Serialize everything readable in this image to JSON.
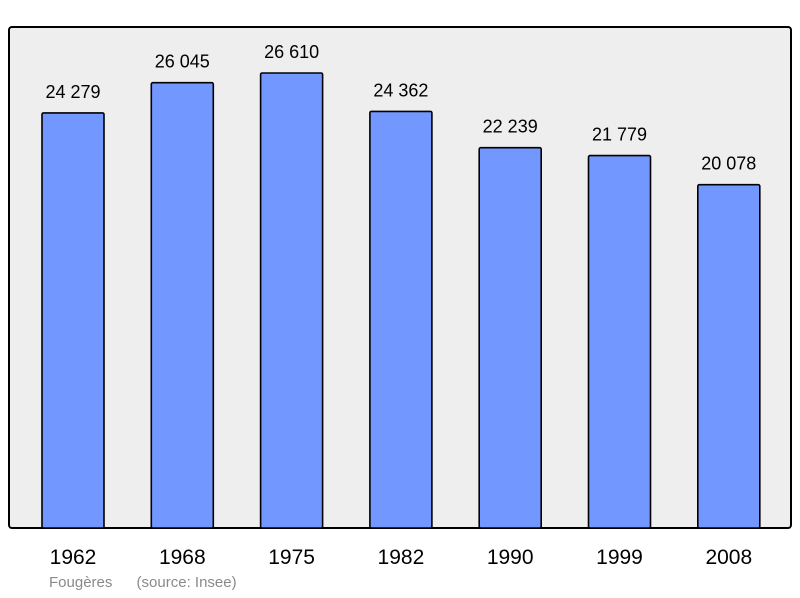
{
  "chart_data": {
    "type": "bar",
    "categories": [
      "1962",
      "1968",
      "1975",
      "1982",
      "1990",
      "1999",
      "2008"
    ],
    "values": [
      24279,
      26045,
      26610,
      24362,
      22239,
      21779,
      20078
    ],
    "value_labels": [
      "24 279",
      "26 045",
      "26 610",
      "24 362",
      "22 239",
      "21 779",
      "20 078"
    ],
    "title": "",
    "xlabel": "",
    "ylabel": "",
    "ylim": [
      0,
      26610
    ],
    "grid": false,
    "legend": "none",
    "colors": {
      "bar_fill": "#7297ff",
      "bar_stroke": "#000000",
      "plot_background": "#eeeeee",
      "frame": "#000000"
    }
  },
  "caption": {
    "place": "Fougères",
    "source": "(source: Insee)"
  }
}
